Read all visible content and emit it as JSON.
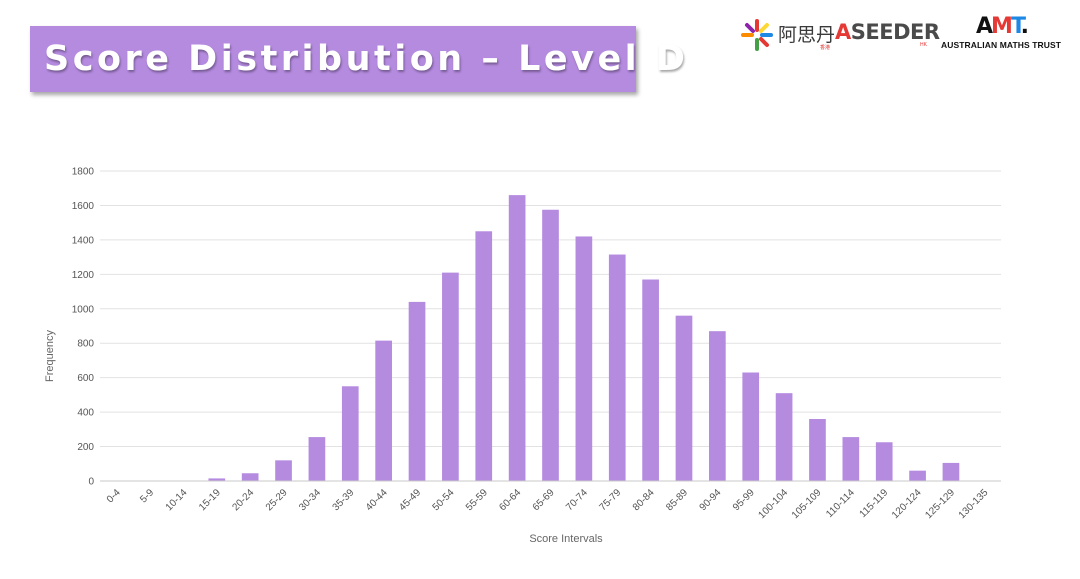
{
  "title": "Score Distribution – Level D",
  "logos": {
    "aoscar": "阿思丹",
    "aoscar_small": "香港",
    "aseeder_a": "A",
    "aseeder_rest": "SEEDER",
    "aseeder_small": "HK",
    "amt_letters": "AMT.",
    "amt_full": "AUSTRALIAN MATHS TRUST"
  },
  "colors": {
    "bar": "#b58be0",
    "banner": "#b58be0",
    "grid": "#e2e2e2"
  },
  "chart_data": {
    "type": "bar",
    "xlabel": "Score Intervals",
    "ylabel": "Frequency",
    "ylim": [
      0,
      1800
    ],
    "yticks": [
      0,
      200,
      400,
      600,
      800,
      1000,
      1200,
      1400,
      1600,
      1800
    ],
    "grid": true,
    "legend": "none",
    "categories": [
      "0-4",
      "5-9",
      "10-14",
      "15-19",
      "20-24",
      "25-29",
      "30-34",
      "35-39",
      "40-44",
      "45-49",
      "50-54",
      "55-59",
      "60-64",
      "65-69",
      "70-74",
      "75-79",
      "80-84",
      "85-89",
      "90-94",
      "95-99",
      "100-104",
      "105-109",
      "110-114",
      "115-119",
      "120-124",
      "125-129",
      "130-135"
    ],
    "values": [
      0,
      0,
      0,
      15,
      45,
      120,
      255,
      550,
      815,
      1040,
      1210,
      1450,
      1660,
      1575,
      1420,
      1315,
      1170,
      960,
      870,
      630,
      510,
      360,
      255,
      225,
      60,
      105,
      0
    ]
  }
}
